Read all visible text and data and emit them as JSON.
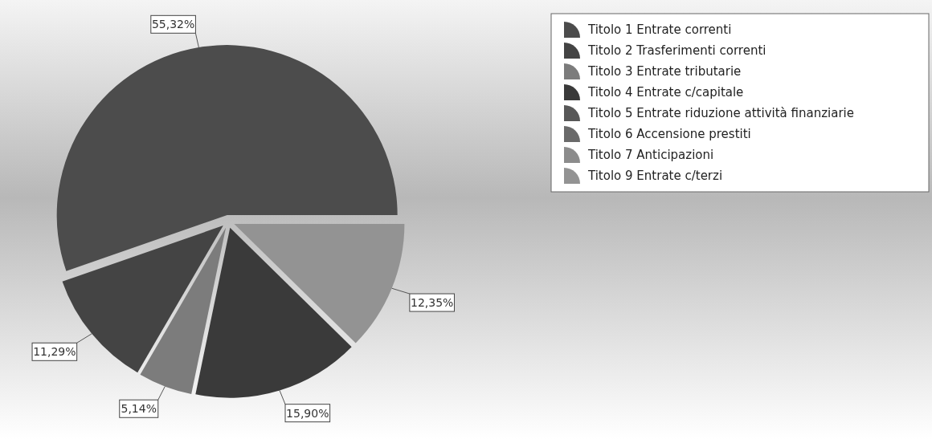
{
  "chart_data": {
    "type": "pie",
    "categories": [
      "Titolo 1 Entrate correnti",
      "Titolo 2 Trasferimenti correnti",
      "Titolo 3 Entrate tributarie",
      "Titolo 4 Entrate c/capitale",
      "Titolo 5 Entrate riduzione attività finanziarie",
      "Titolo 6 Accensione prestiti",
      "Titolo 7 Anticipazioni",
      "Titolo 9 Entrate c/terzi"
    ],
    "values": [
      55.32,
      11.29,
      5.14,
      15.9,
      0,
      0,
      0,
      12.35
    ],
    "value_labels": [
      "55,32%",
      "11,29%",
      "5,14%",
      "15,90%",
      null,
      null,
      null,
      "12,35%"
    ],
    "colors": [
      "#4c4c4c",
      "#444444",
      "#7c7c7c",
      "#3a3a3a",
      "#585858",
      "#6a6a6a",
      "#8c8c8c",
      "#939393"
    ],
    "legend": "top right"
  }
}
